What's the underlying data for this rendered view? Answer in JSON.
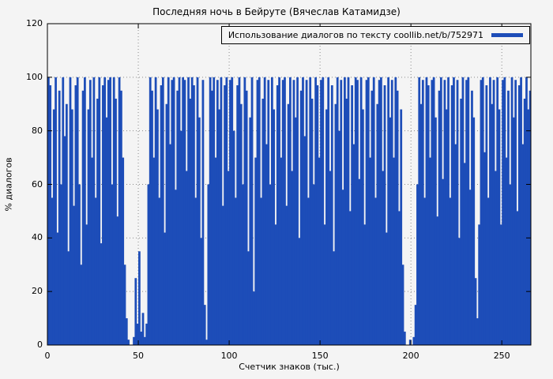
{
  "page": {
    "background": "#f4f4f4"
  },
  "chart_data": {
    "type": "bar",
    "title": "Последняя ночь в Бейруте (Вячеслав Катамидзе)",
    "legend": "Использование диалогов по тексту coollib.net/b/752971",
    "xlabel": "Счетчик знаков (тыс.)",
    "ylabel": "% диалогов",
    "xlim": [
      0,
      266
    ],
    "ylim": [
      0,
      120
    ],
    "xticks": [
      0,
      50,
      100,
      150,
      200,
      250
    ],
    "yticks": [
      0,
      20,
      40,
      60,
      80,
      100,
      120
    ],
    "grid": true,
    "legend_position": "top-right",
    "series_color": "#1d4db8",
    "x_step": 1,
    "values": [
      100,
      97,
      55,
      88,
      100,
      42,
      95,
      60,
      100,
      78,
      90,
      35,
      100,
      88,
      52,
      97,
      100,
      60,
      30,
      95,
      100,
      45,
      88,
      99,
      70,
      100,
      55,
      92,
      100,
      38,
      97,
      100,
      85,
      99,
      100,
      60,
      100,
      92,
      48,
      100,
      95,
      70,
      30,
      10,
      2,
      0,
      0,
      3,
      25,
      8,
      35,
      5,
      12,
      3,
      8,
      60,
      100,
      95,
      70,
      100,
      88,
      55,
      97,
      100,
      42,
      90,
      100,
      75,
      99,
      100,
      58,
      95,
      100,
      80,
      100,
      99,
      65,
      100,
      92,
      100,
      97,
      55,
      100,
      85,
      40,
      99,
      15,
      2,
      60,
      100,
      95,
      100,
      70,
      99,
      88,
      100,
      52,
      97,
      100,
      65,
      99,
      100,
      80,
      55,
      97,
      100,
      90,
      60,
      100,
      95,
      35,
      85,
      100,
      20,
      70,
      99,
      100,
      55,
      92,
      100,
      75,
      99,
      60,
      100,
      88,
      45,
      97,
      100,
      70,
      99,
      100,
      52,
      90,
      100,
      65,
      99,
      85,
      100,
      40,
      95,
      100,
      78,
      99,
      55,
      100,
      92,
      60,
      100,
      97,
      70,
      99,
      100,
      45,
      88,
      100,
      65,
      97,
      35,
      90,
      100,
      80,
      99,
      58,
      100,
      92,
      100,
      50,
      97,
      75,
      100,
      99,
      62,
      100,
      88,
      45,
      99,
      100,
      70,
      95,
      100,
      55,
      90,
      99,
      100,
      65,
      97,
      42,
      100,
      85,
      99,
      70,
      100,
      95,
      50,
      88,
      30,
      5,
      0,
      0,
      2,
      0,
      3,
      15,
      60,
      100,
      90,
      99,
      55,
      100,
      97,
      70,
      99,
      100,
      85,
      48,
      95,
      100,
      62,
      99,
      88,
      100,
      55,
      97,
      100,
      75,
      99,
      40,
      92,
      100,
      68,
      99,
      100,
      58,
      95,
      85,
      25,
      10,
      45,
      99,
      100,
      72,
      97,
      55,
      100,
      90,
      99,
      65,
      100,
      88,
      45,
      99,
      100,
      70,
      95,
      60,
      100,
      85,
      99,
      50,
      97,
      100,
      75,
      92,
      100,
      88,
      95
    ]
  }
}
